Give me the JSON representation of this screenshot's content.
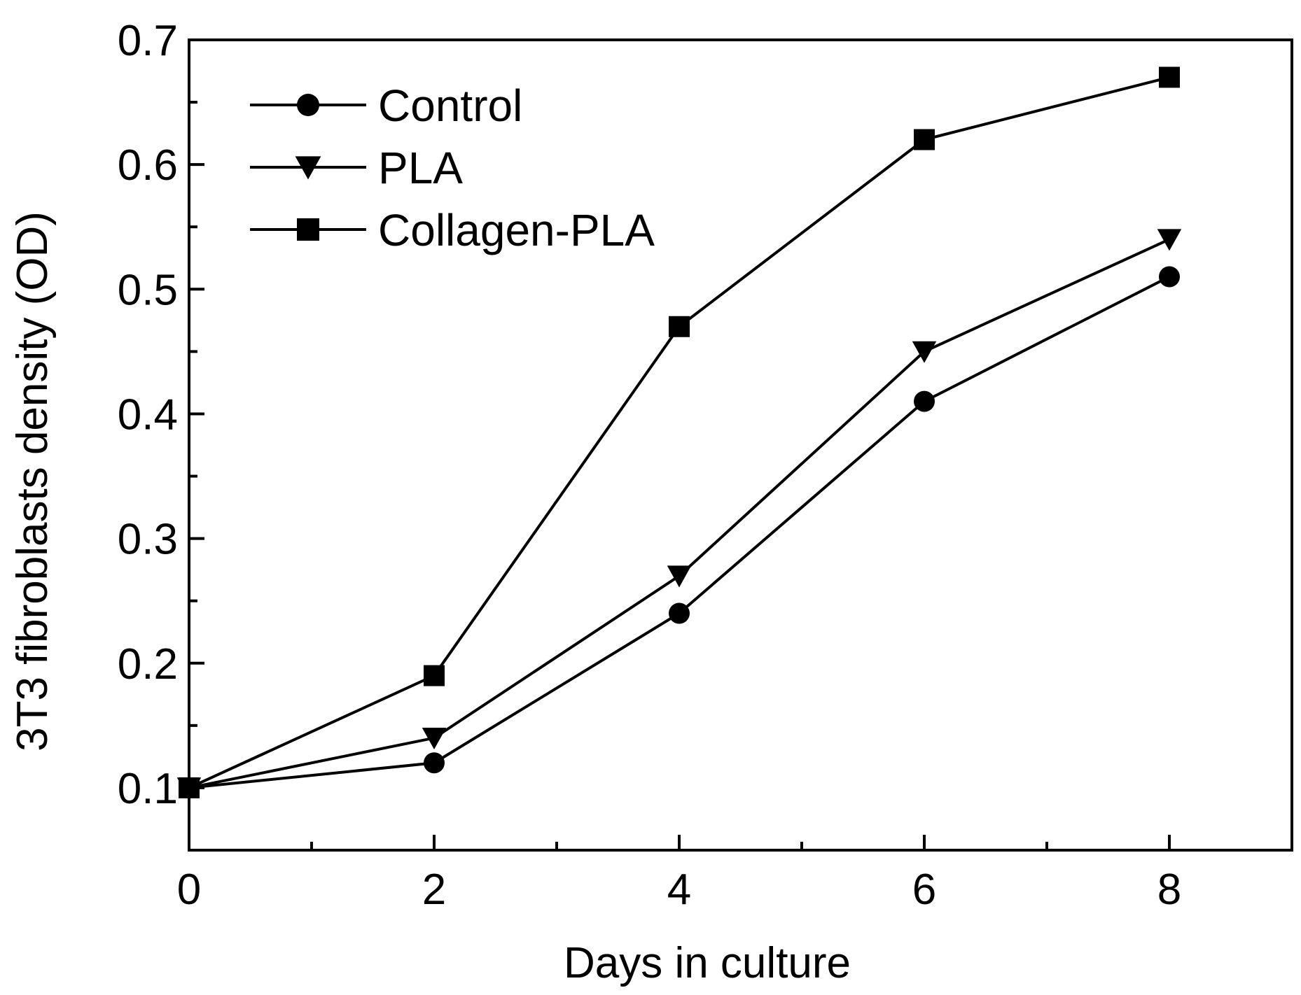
{
  "chart_data": {
    "type": "line",
    "title": "",
    "xlabel": "Days in culture",
    "ylabel": "3T3 fibroblasts density (OD)",
    "xlim": [
      0,
      9
    ],
    "ylim": [
      0.05,
      0.7
    ],
    "xticks": [
      0,
      2,
      4,
      6,
      8
    ],
    "xtick_labels": [
      "0",
      "2",
      "4",
      "6",
      "8"
    ],
    "yticks": [
      0.1,
      0.2,
      0.3,
      0.4,
      0.5,
      0.6,
      0.7
    ],
    "ytick_labels": [
      "0.1",
      "0.2",
      "0.3",
      "0.4",
      "0.5",
      "0.6",
      "0.7"
    ],
    "legend_position": "top-left",
    "grid": false,
    "x": [
      0,
      2,
      4,
      6,
      8
    ],
    "series": [
      {
        "name": "Control",
        "marker": "circle",
        "values": [
          0.1,
          0.12,
          0.24,
          0.41,
          0.51
        ]
      },
      {
        "name": "PLA",
        "marker": "triangle-down",
        "values": [
          0.1,
          0.14,
          0.27,
          0.45,
          0.54
        ]
      },
      {
        "name": "Collagen-PLA",
        "marker": "square",
        "values": [
          0.1,
          0.19,
          0.47,
          0.62,
          0.67
        ]
      }
    ],
    "colors": {
      "line": "#000000",
      "background": "#ffffff"
    }
  }
}
